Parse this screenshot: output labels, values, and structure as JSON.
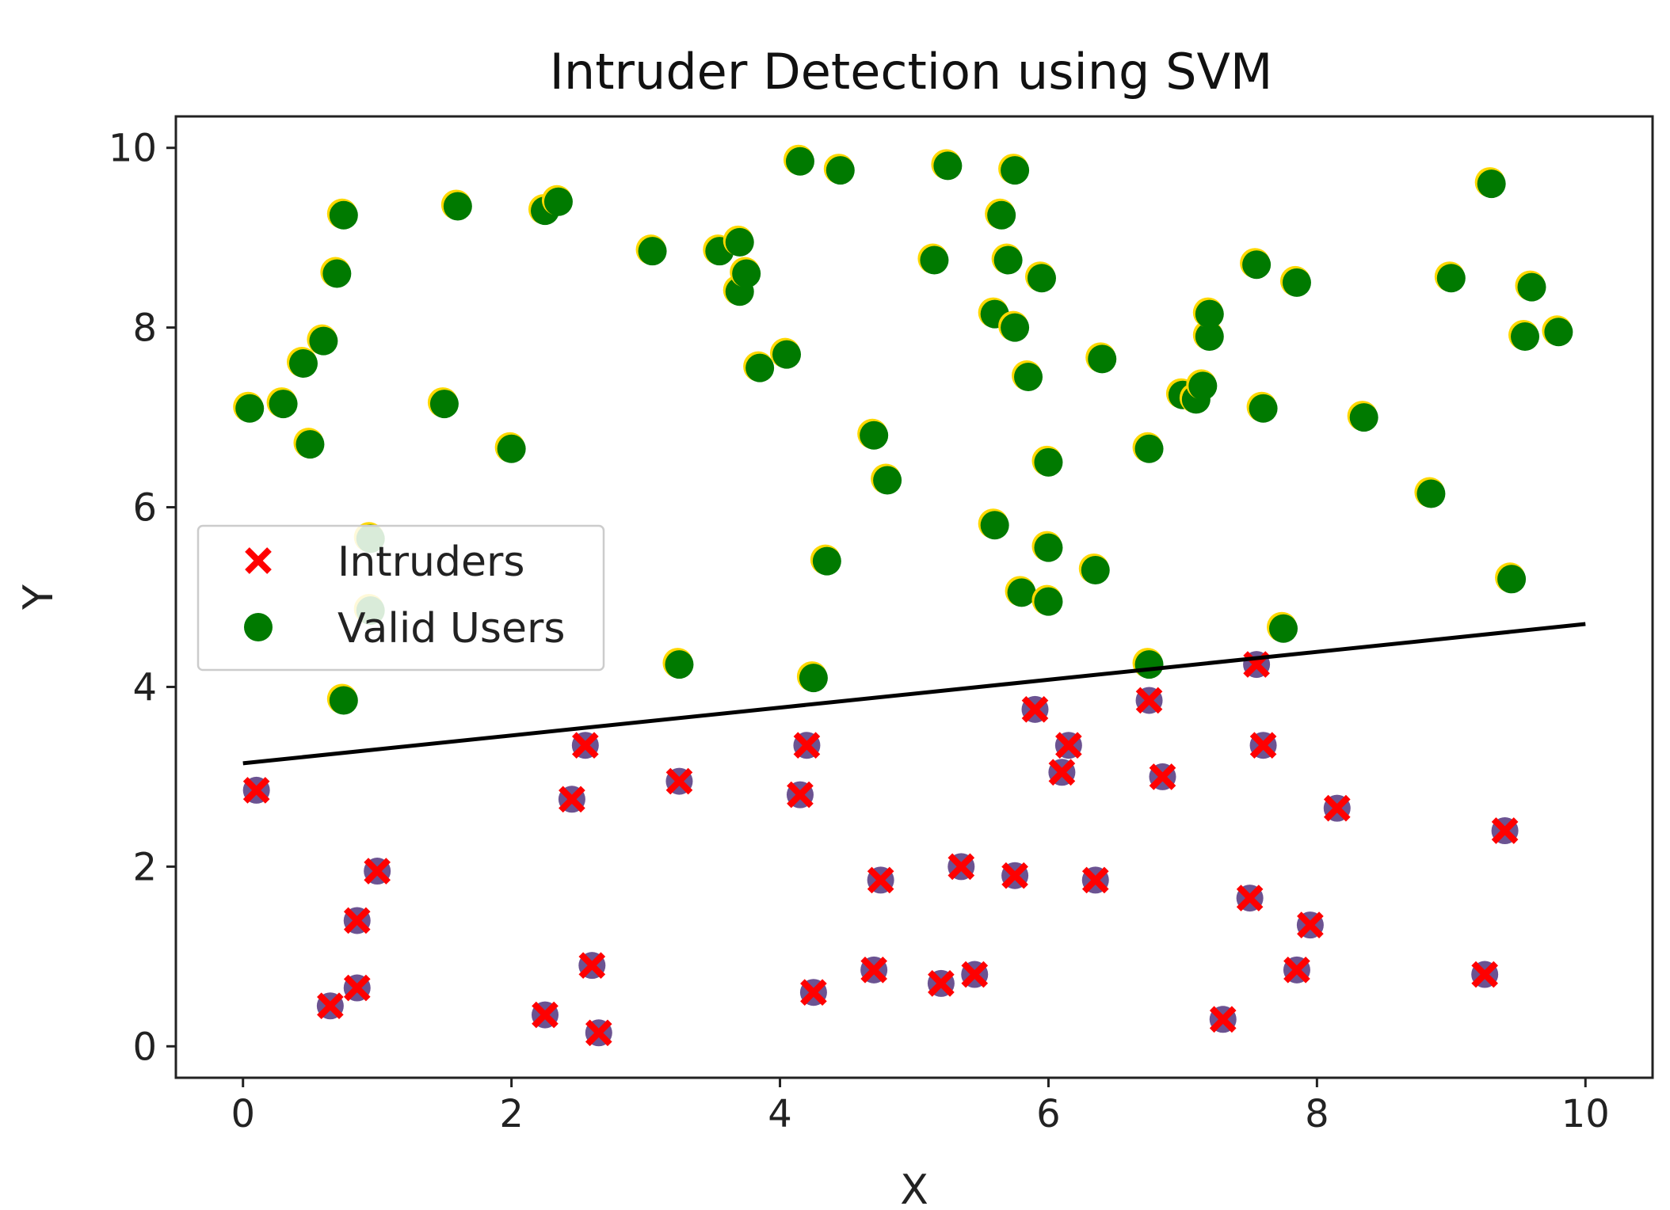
{
  "chart_data": {
    "type": "scatter",
    "title": "Intruder Detection using SVM",
    "xlabel": "X",
    "ylabel": "Y",
    "xlim": [
      -0.5,
      10.5
    ],
    "ylim": [
      -0.35,
      10.35
    ],
    "xticks": [
      0,
      2,
      4,
      6,
      8,
      10
    ],
    "yticks": [
      0,
      2,
      4,
      6,
      8,
      10
    ],
    "grid": false,
    "legend": {
      "placement": "center-left"
    },
    "series": [
      {
        "name": "Intruders",
        "marker": "x",
        "color": "#ff0000",
        "underlay_color": "#3a1a6e",
        "points": [
          [
            0.1,
            2.85
          ],
          [
            0.65,
            0.45
          ],
          [
            0.85,
            0.65
          ],
          [
            0.85,
            1.4
          ],
          [
            1.0,
            1.95
          ],
          [
            2.25,
            0.35
          ],
          [
            2.45,
            2.75
          ],
          [
            2.55,
            3.35
          ],
          [
            2.6,
            0.9
          ],
          [
            2.65,
            0.15
          ],
          [
            3.25,
            2.95
          ],
          [
            4.15,
            2.8
          ],
          [
            4.2,
            3.35
          ],
          [
            4.25,
            0.6
          ],
          [
            4.7,
            0.85
          ],
          [
            4.75,
            1.85
          ],
          [
            5.2,
            0.7
          ],
          [
            5.35,
            2.0
          ],
          [
            5.45,
            0.8
          ],
          [
            5.75,
            1.9
          ],
          [
            5.9,
            3.75
          ],
          [
            6.1,
            3.05
          ],
          [
            6.15,
            3.35
          ],
          [
            6.35,
            1.85
          ],
          [
            6.75,
            3.85
          ],
          [
            6.85,
            3.0
          ],
          [
            7.3,
            0.3
          ],
          [
            7.5,
            1.65
          ],
          [
            7.55,
            4.25
          ],
          [
            7.6,
            3.35
          ],
          [
            7.85,
            0.85
          ],
          [
            7.95,
            1.35
          ],
          [
            8.15,
            2.65
          ],
          [
            9.25,
            0.8
          ],
          [
            9.4,
            2.4
          ]
        ]
      },
      {
        "name": "Valid Users",
        "marker": "o",
        "color": "#007a00",
        "halo_color": "#ffd800",
        "points": [
          [
            0.05,
            7.1
          ],
          [
            0.3,
            7.15
          ],
          [
            0.45,
            7.6
          ],
          [
            0.5,
            6.7
          ],
          [
            0.6,
            7.85
          ],
          [
            0.7,
            8.6
          ],
          [
            0.75,
            9.25
          ],
          [
            0.75,
            3.85
          ],
          [
            0.95,
            5.65
          ],
          [
            0.95,
            4.85
          ],
          [
            1.5,
            7.15
          ],
          [
            1.6,
            9.35
          ],
          [
            2.0,
            6.65
          ],
          [
            2.25,
            9.3
          ],
          [
            2.35,
            9.4
          ],
          [
            3.05,
            8.85
          ],
          [
            3.25,
            4.25
          ],
          [
            3.55,
            8.85
          ],
          [
            3.7,
            8.95
          ],
          [
            3.7,
            8.4
          ],
          [
            3.75,
            8.6
          ],
          [
            3.85,
            7.55
          ],
          [
            4.05,
            7.7
          ],
          [
            4.15,
            9.85
          ],
          [
            4.25,
            4.1
          ],
          [
            4.35,
            5.4
          ],
          [
            4.45,
            9.75
          ],
          [
            4.7,
            6.8
          ],
          [
            4.8,
            6.3
          ],
          [
            5.15,
            8.75
          ],
          [
            5.25,
            9.8
          ],
          [
            5.6,
            5.8
          ],
          [
            5.6,
            8.15
          ],
          [
            5.65,
            9.25
          ],
          [
            5.7,
            8.75
          ],
          [
            5.75,
            8.0
          ],
          [
            5.75,
            9.75
          ],
          [
            5.85,
            7.45
          ],
          [
            5.8,
            5.05
          ],
          [
            5.95,
            8.55
          ],
          [
            6.0,
            6.5
          ],
          [
            6.0,
            5.55
          ],
          [
            6.0,
            4.95
          ],
          [
            6.35,
            5.3
          ],
          [
            6.4,
            7.65
          ],
          [
            6.75,
            6.65
          ],
          [
            6.75,
            4.25
          ],
          [
            7.0,
            7.25
          ],
          [
            7.1,
            7.2
          ],
          [
            7.15,
            7.35
          ],
          [
            7.2,
            7.9
          ],
          [
            7.2,
            8.15
          ],
          [
            7.55,
            8.7
          ],
          [
            7.6,
            7.1
          ],
          [
            7.75,
            4.65
          ],
          [
            7.85,
            8.5
          ],
          [
            8.35,
            7.0
          ],
          [
            8.85,
            6.15
          ],
          [
            9.0,
            8.55
          ],
          [
            9.3,
            9.6
          ],
          [
            9.45,
            5.2
          ],
          [
            9.55,
            7.9
          ],
          [
            9.6,
            8.45
          ],
          [
            9.8,
            7.95
          ]
        ]
      }
    ],
    "decision_boundary": {
      "type": "line",
      "color": "#000000",
      "from": [
        0.0,
        3.15
      ],
      "to": [
        10.0,
        4.7
      ]
    }
  }
}
